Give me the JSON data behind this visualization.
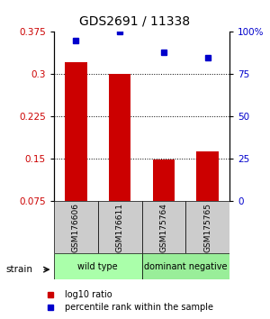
{
  "title": "GDS2691 / 11338",
  "samples": [
    "GSM176606",
    "GSM176611",
    "GSM175764",
    "GSM175765"
  ],
  "log10_ratio": [
    0.321,
    0.301,
    0.148,
    0.163
  ],
  "percentile_rank": [
    95,
    100,
    88,
    85
  ],
  "ylim_left": [
    0.075,
    0.375
  ],
  "ylim_right": [
    0,
    100
  ],
  "yticks_left": [
    0.075,
    0.15,
    0.225,
    0.3,
    0.375
  ],
  "yticks_right": [
    0,
    25,
    50,
    75,
    100
  ],
  "ytick_labels_left": [
    "0.075",
    "0.15",
    "0.225",
    "0.3",
    "0.375"
  ],
  "ytick_labels_right": [
    "0",
    "25",
    "50",
    "75",
    "100%"
  ],
  "bar_color": "#cc0000",
  "dot_color": "#0000cc",
  "bar_width": 0.5,
  "label_color_left": "#cc0000",
  "label_color_right": "#0000cc",
  "strain_label": "strain",
  "legend_red": "log10 ratio",
  "legend_blue": "percentile rank within the sample",
  "sample_box_color": "#cccccc",
  "group_colors": [
    "#aaffaa",
    "#99ee99"
  ],
  "group_names": [
    "wild type",
    "dominant negative"
  ],
  "group_starts": [
    0,
    2
  ],
  "group_ends": [
    1,
    3
  ]
}
